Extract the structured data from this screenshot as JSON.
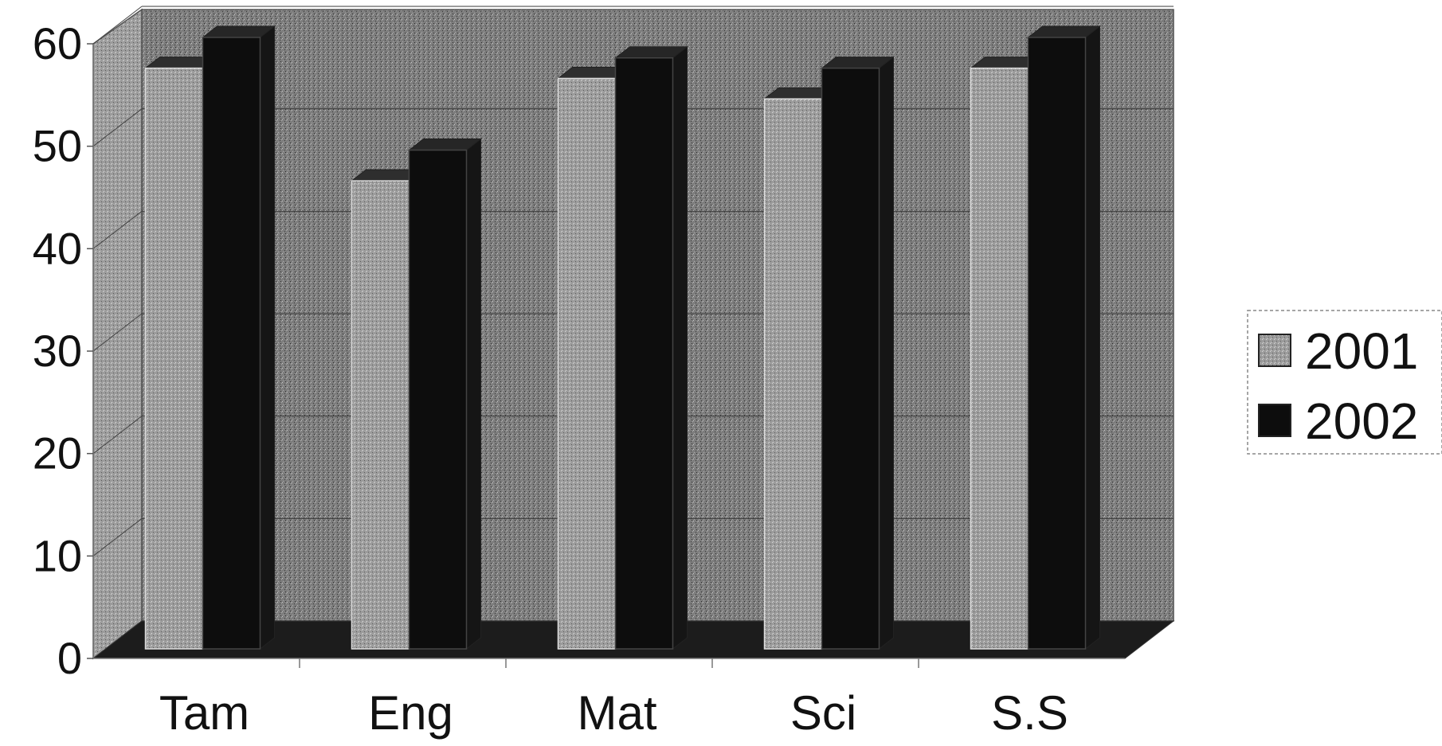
{
  "chart_data": {
    "type": "bar",
    "title": "",
    "xlabel": "",
    "ylabel": "",
    "ylim": [
      0,
      60
    ],
    "yticks": [
      "0",
      "10",
      "20",
      "30",
      "40",
      "50",
      "60"
    ],
    "categories": [
      "Tam",
      "Eng",
      "Mat",
      "Sci",
      "S.S"
    ],
    "series": [
      {
        "name": "2001",
        "values": [
          57,
          46,
          56,
          54,
          57
        ],
        "color": "#9a9a9a"
      },
      {
        "name": "2002",
        "values": [
          60,
          49,
          58,
          57,
          60
        ],
        "color": "#0d0d0d"
      }
    ],
    "legend": "right",
    "grid": true,
    "style": "3d-clustered"
  }
}
